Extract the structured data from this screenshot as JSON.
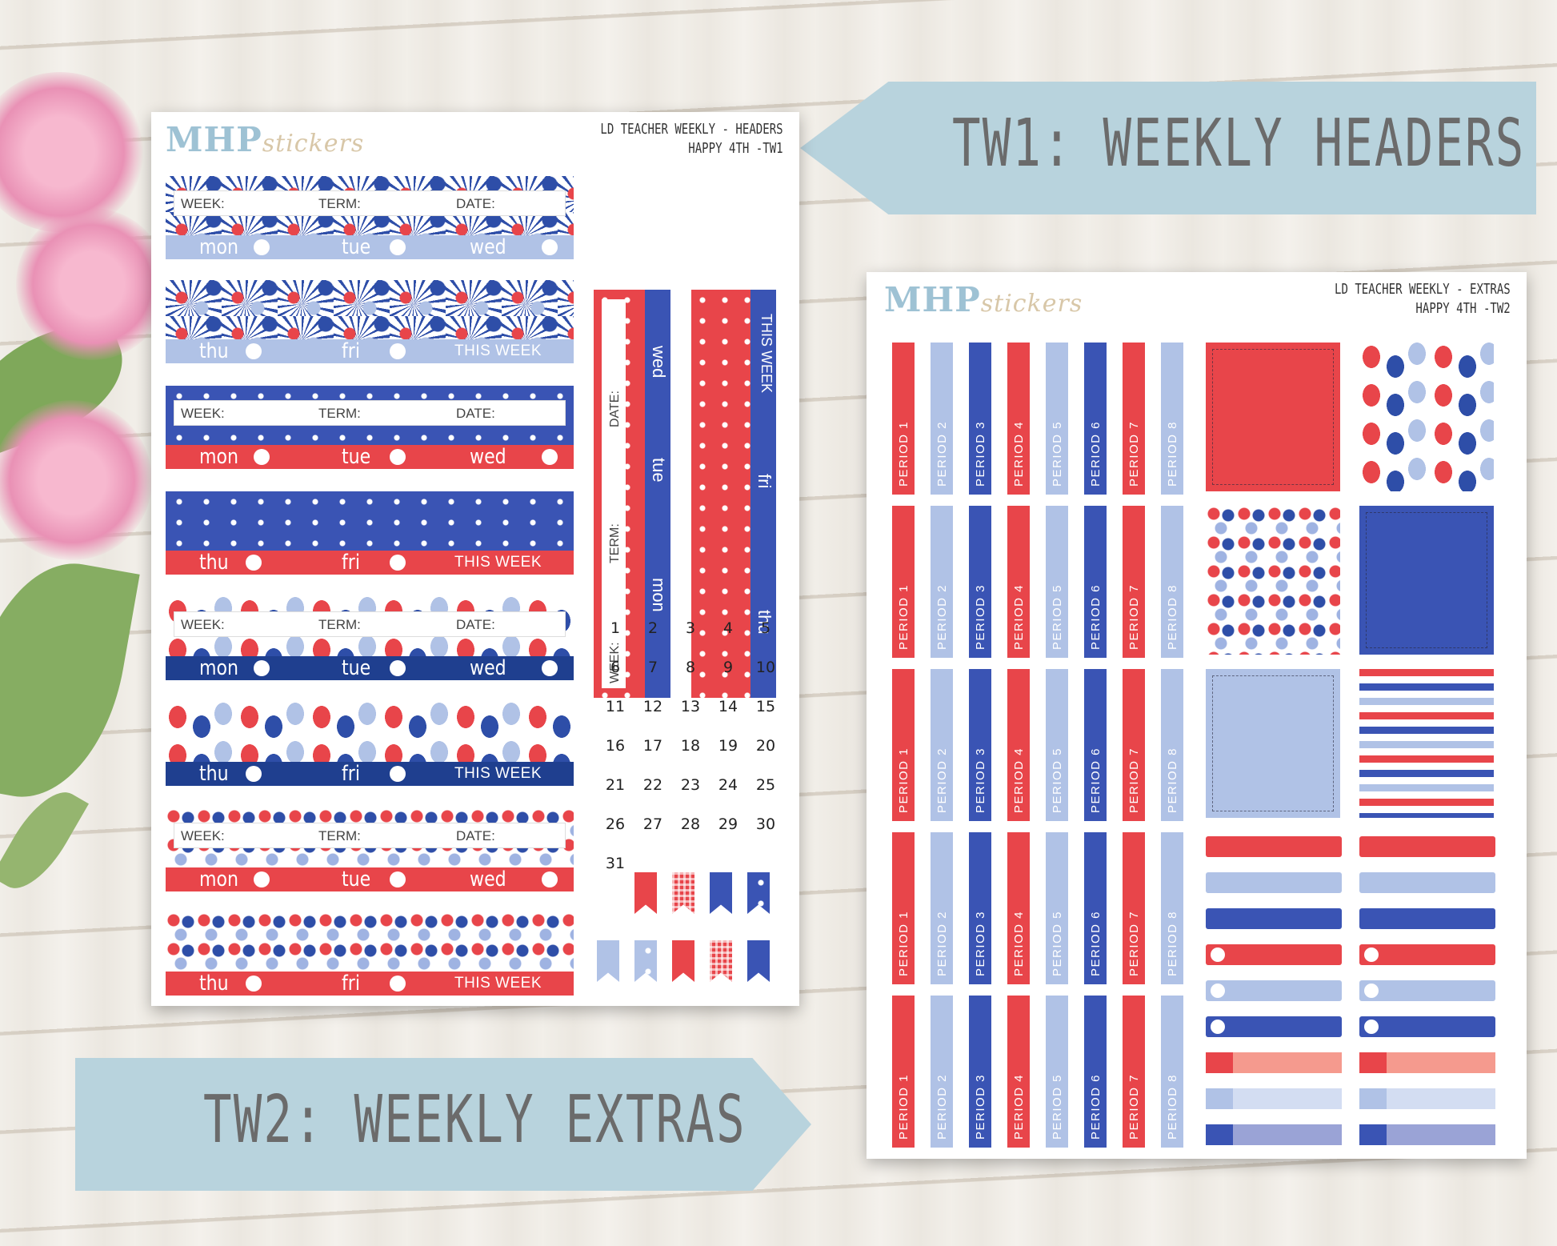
{
  "banners": {
    "top": "TW1: WEEKLY HEADERS",
    "bottom": "TW2: WEEKLY EXTRAS"
  },
  "colors": {
    "red": "#e8454a",
    "navy": "#2e4ea8",
    "blue": "#3a54b4",
    "light_blue": "#b0c2e6",
    "banner": "#b8d3dd"
  },
  "sheet1": {
    "logo_main": "MHP",
    "logo_script": "stickers",
    "title_line1": "LD TEACHER WEEKLY - HEADERS",
    "title_line2": "HAPPY 4TH -TW1",
    "fields": {
      "week": "WEEK:",
      "term": "TERM:",
      "date": "DATE:"
    },
    "days": {
      "mon": "mon",
      "tue": "tue",
      "wed": "wed",
      "thu": "thu",
      "fri": "fri"
    },
    "this_week": "THIS WEEK",
    "calendar": [
      "1",
      "2",
      "3",
      "4",
      "5",
      "6",
      "7",
      "8",
      "9",
      "10",
      "11",
      "12",
      "13",
      "14",
      "15",
      "16",
      "17",
      "18",
      "19",
      "20",
      "21",
      "22",
      "23",
      "24",
      "25",
      "26",
      "27",
      "28",
      "29",
      "30",
      "31"
    ]
  },
  "sheet2": {
    "logo_main": "MHP",
    "logo_script": "stickers",
    "title_line1": "LD TEACHER WEEKLY - EXTRAS",
    "title_line2": "HAPPY 4TH -TW2",
    "periods": [
      "PERIOD 1",
      "PERIOD 2",
      "PERIOD 3",
      "PERIOD 4",
      "PERIOD 5",
      "PERIOD 6",
      "PERIOD 7",
      "PERIOD 8"
    ]
  }
}
